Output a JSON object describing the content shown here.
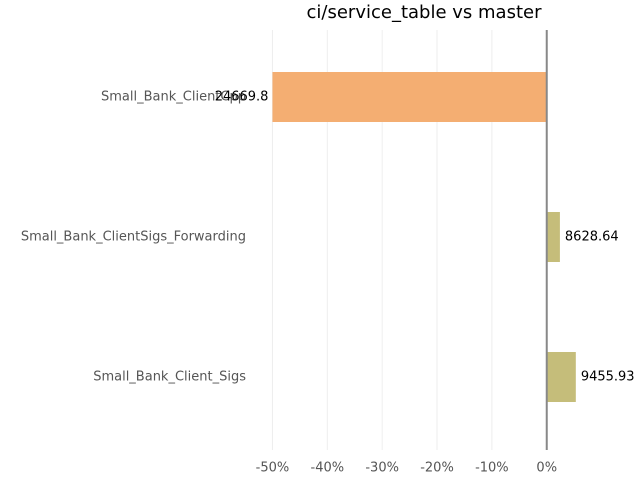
{
  "chart_data": {
    "type": "barh",
    "title": "ci/service_table vs master",
    "categories": [
      "Small_Bank_ClientCpp",
      "Small_Bank_ClientSigs_Forwarding",
      "Small_Bank_Client_Sigs"
    ],
    "values": [
      -50,
      2.4,
      5.3
    ],
    "colors": [
      "#f4ae72",
      "#c5bd7a",
      "#c5bd7a"
    ],
    "annotations": [
      "24669.8",
      "8628.64",
      "9455.93"
    ],
    "xlim": [
      -53,
      17
    ],
    "xticks": [
      {
        "value": -50,
        "label": "-50%"
      },
      {
        "value": -40,
        "label": "-40%"
      },
      {
        "value": -30,
        "label": "-30%"
      },
      {
        "value": -20,
        "label": "-20%"
      },
      {
        "value": -10,
        "label": "-10%"
      },
      {
        "value": 0,
        "label": "0%"
      }
    ],
    "grid": true
  }
}
